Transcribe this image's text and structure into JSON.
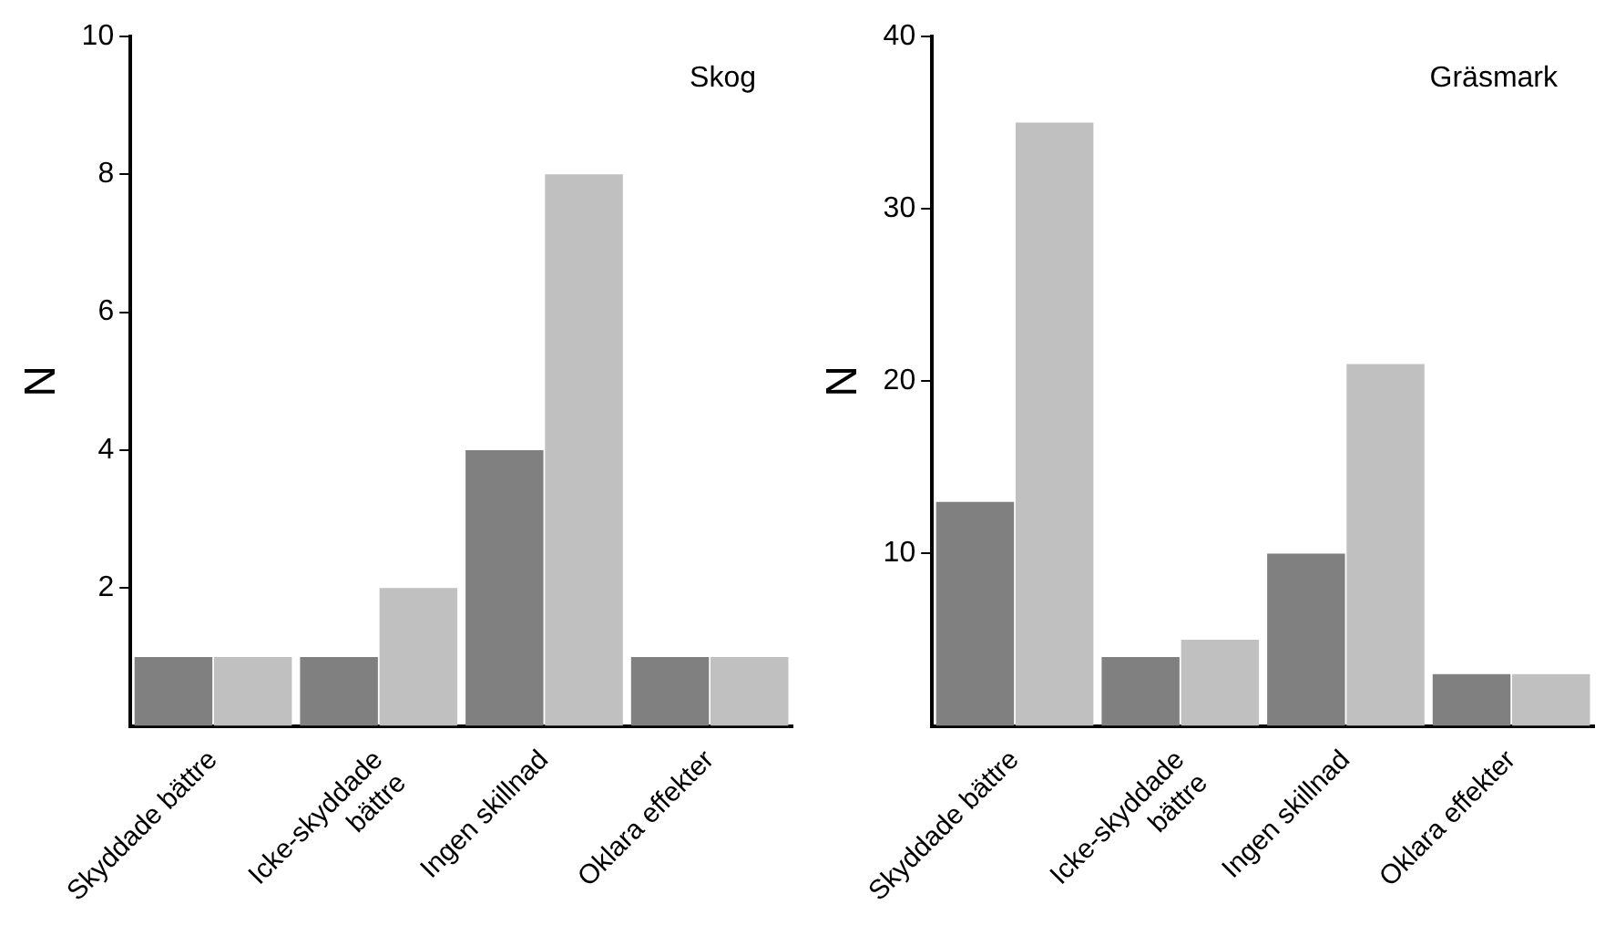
{
  "chart_data": [
    {
      "type": "bar",
      "title": "Skog",
      "ylabel": "N",
      "categories": [
        "Skyddade bättre",
        "Icke-skyddade bättre",
        "Ingen skillnad",
        "Oklara effekter"
      ],
      "series": [
        {
          "color": "#808080",
          "values": [
            1,
            1,
            4,
            1
          ]
        },
        {
          "color": "#c0c0c0",
          "values": [
            1,
            2,
            8,
            1
          ]
        }
      ],
      "ylim": [
        0,
        10
      ],
      "yticks": [
        2,
        4,
        6,
        8,
        10
      ],
      "grid": false,
      "legend": false
    },
    {
      "type": "bar",
      "title": "Gräsmark",
      "ylabel": "N",
      "categories": [
        "Skyddade bättre",
        "Icke-skyddade bättre",
        "Ingen skillnad",
        "Oklara effekter"
      ],
      "series": [
        {
          "color": "#808080",
          "values": [
            13,
            4,
            10,
            3
          ]
        },
        {
          "color": "#c0c0c0",
          "values": [
            35,
            5,
            21,
            3
          ]
        }
      ],
      "ylim": [
        0,
        40
      ],
      "yticks": [
        10,
        20,
        30,
        40
      ],
      "grid": false,
      "legend": false
    }
  ]
}
